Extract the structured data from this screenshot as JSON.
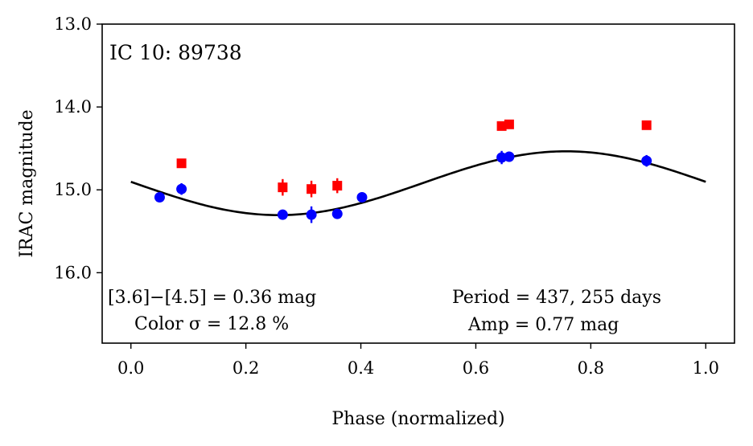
{
  "chart_data": {
    "type": "scatter",
    "title": "IC 10:  89738",
    "xlabel": "Phase (normalized)",
    "ylabel": "IRAC magnitude",
    "xlim": [
      -0.05,
      1.05
    ],
    "ylim": [
      16.85,
      13.0
    ],
    "y_inverted": true,
    "grid": false,
    "xticks": [
      0.0,
      0.2,
      0.4,
      0.6,
      0.8,
      1.0
    ],
    "xtick_labels": [
      "0.0",
      "0.2",
      "0.4",
      "0.6",
      "0.8",
      "1.0"
    ],
    "yticks": [
      13.0,
      14.0,
      15.0,
      16.0
    ],
    "ytick_labels": [
      "13.0",
      "14.0",
      "15.0",
      "16.0"
    ],
    "series": [
      {
        "color": "#ff0000",
        "marker": "square",
        "points": [
          {
            "x": 0.088,
            "y": 14.68,
            "err": 0.05
          },
          {
            "x": 0.264,
            "y": 14.97,
            "err": 0.1
          },
          {
            "x": 0.314,
            "y": 14.99,
            "err": 0.1
          },
          {
            "x": 0.359,
            "y": 14.95,
            "err": 0.09
          },
          {
            "x": 0.645,
            "y": 14.23,
            "err": 0.05
          },
          {
            "x": 0.658,
            "y": 14.21,
            "err": 0.05
          },
          {
            "x": 0.897,
            "y": 14.22,
            "err": 0.04
          }
        ]
      },
      {
        "color": "#0000ff",
        "marker": "circle",
        "points": [
          {
            "x": 0.05,
            "y": 15.09,
            "err": 0.04
          },
          {
            "x": 0.088,
            "y": 14.99,
            "err": 0.07
          },
          {
            "x": 0.264,
            "y": 15.3,
            "err": 0.06
          },
          {
            "x": 0.314,
            "y": 15.3,
            "err": 0.1
          },
          {
            "x": 0.359,
            "y": 15.29,
            "err": 0.06
          },
          {
            "x": 0.402,
            "y": 15.09,
            "err": 0.04
          },
          {
            "x": 0.645,
            "y": 14.61,
            "err": 0.08
          },
          {
            "x": 0.658,
            "y": 14.6,
            "err": 0.06
          },
          {
            "x": 0.897,
            "y": 14.65,
            "err": 0.07
          }
        ]
      }
    ],
    "fit": {
      "color": "#000000",
      "mean": 14.92,
      "amplitude": 0.385,
      "peak_phase": 0.757,
      "phase_range": [
        0.0,
        1.0
      ]
    },
    "annotations": {
      "color_line": "[3.6]−[4.5] = 0.36 mag",
      "color_sigma": "Color σ = 12.8 %",
      "period": "Period = 437, 255 days",
      "amp": "Amp = 0.77 mag"
    }
  }
}
